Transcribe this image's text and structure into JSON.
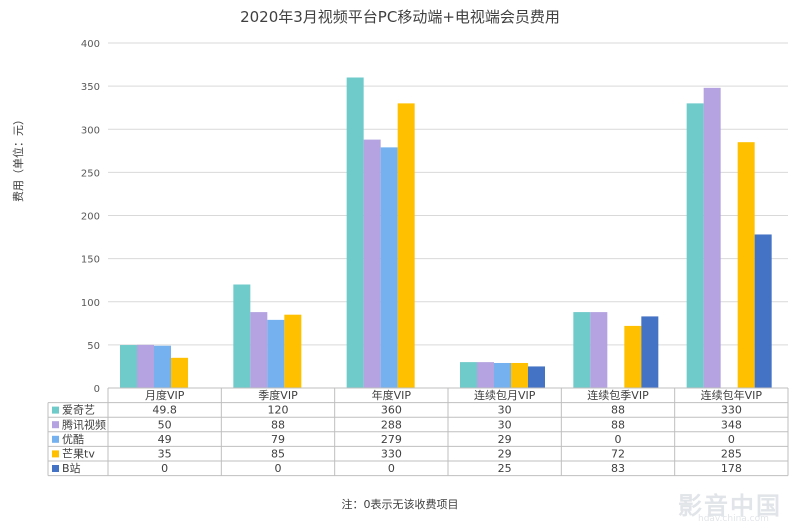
{
  "chart_data": {
    "type": "bar",
    "title": "2020年3月视频平台PC移动端+电视端会员费用",
    "ylabel": "费用（单位：元）",
    "ylim": [
      0,
      400
    ],
    "yticks": [
      0,
      50,
      100,
      150,
      200,
      250,
      300,
      350,
      400
    ],
    "categories": [
      "月度VIP",
      "季度VIP",
      "年度VIP",
      "连续包月VIP",
      "连续包季VIP",
      "连续包年VIP"
    ],
    "series": [
      {
        "name": "爱奇艺",
        "color": "#6FCACA",
        "values": [
          49.8,
          120,
          360,
          30,
          88,
          330
        ],
        "labels": [
          "49.8",
          "120",
          "360",
          "30",
          "88",
          "330"
        ]
      },
      {
        "name": "腾讯视频",
        "color": "#B4A3E0",
        "values": [
          50,
          88,
          288,
          30,
          88,
          348
        ],
        "labels": [
          "50",
          "88",
          "288",
          "30",
          "88",
          "348"
        ]
      },
      {
        "name": "优酷",
        "color": "#75B1EE",
        "values": [
          49,
          79,
          279,
          29,
          0,
          0
        ],
        "labels": [
          "49",
          "79",
          "279",
          "29",
          "0",
          "0"
        ]
      },
      {
        "name": "芒果tv",
        "color": "#FFC000",
        "values": [
          35,
          85,
          330,
          29,
          72,
          285
        ],
        "labels": [
          "35",
          "85",
          "330",
          "29",
          "72",
          "285"
        ]
      },
      {
        "name": "B站",
        "color": "#4472C4",
        "values": [
          0,
          0,
          0,
          25,
          83,
          178
        ],
        "labels": [
          "0",
          "0",
          "0",
          "25",
          "83",
          "178"
        ]
      }
    ],
    "grid": true,
    "legend": "data-table"
  },
  "note": "注：0表示无该收费项目",
  "watermark": {
    "main": "影音中国",
    "sub": "hdav.china.com"
  }
}
